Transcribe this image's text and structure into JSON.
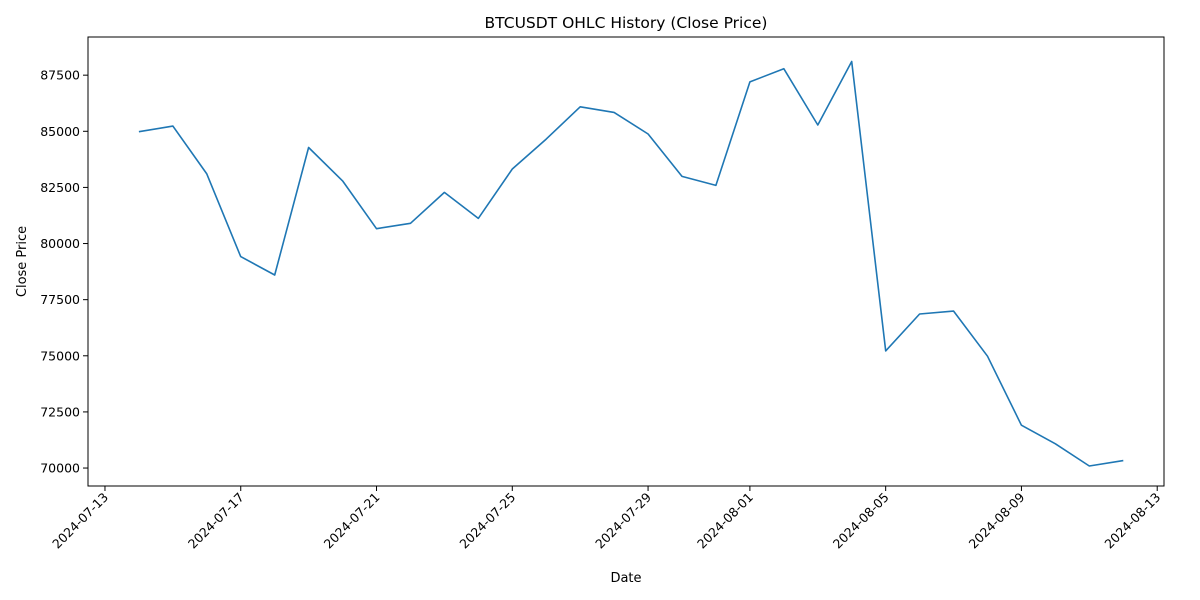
{
  "chart_data": {
    "type": "line",
    "title": "BTCUSDT OHLC History (Close Price)",
    "xlabel": "Date",
    "ylabel": "Close Price",
    "x_ticks": [
      "2024-07-13",
      "2024-07-17",
      "2024-07-21",
      "2024-07-25",
      "2024-07-29",
      "2024-08-01",
      "2024-08-05",
      "2024-08-09",
      "2024-08-13"
    ],
    "y_ticks": [
      70000,
      72500,
      75000,
      77500,
      80000,
      82500,
      85000,
      87500
    ],
    "xlim": [
      "2024-07-13",
      "2024-08-13"
    ],
    "ylim": [
      69200,
      89200
    ],
    "grid": false,
    "series": [
      {
        "color": "#1f77b4",
        "x": [
          "2024-07-14",
          "2024-07-15",
          "2024-07-16",
          "2024-07-17",
          "2024-07-18",
          "2024-07-19",
          "2024-07-20",
          "2024-07-21",
          "2024-07-22",
          "2024-07-23",
          "2024-07-24",
          "2024-07-25",
          "2024-07-26",
          "2024-07-27",
          "2024-07-28",
          "2024-07-29",
          "2024-07-30",
          "2024-07-31",
          "2024-08-01",
          "2024-08-02",
          "2024-08-03",
          "2024-08-04",
          "2024-08-05",
          "2024-08-06",
          "2024-08-07",
          "2024-08-08",
          "2024-08-09",
          "2024-08-10",
          "2024-08-11",
          "2024-08-12"
        ],
        "y": [
          84980,
          85230,
          83100,
          79420,
          78600,
          84280,
          82790,
          80660,
          80900,
          82280,
          81120,
          83320,
          84650,
          86090,
          85840,
          84880,
          82990,
          82590,
          87200,
          87790,
          85280,
          88110,
          75220,
          76860,
          76990,
          74980,
          71910,
          71080,
          70090,
          70330
        ]
      }
    ]
  }
}
